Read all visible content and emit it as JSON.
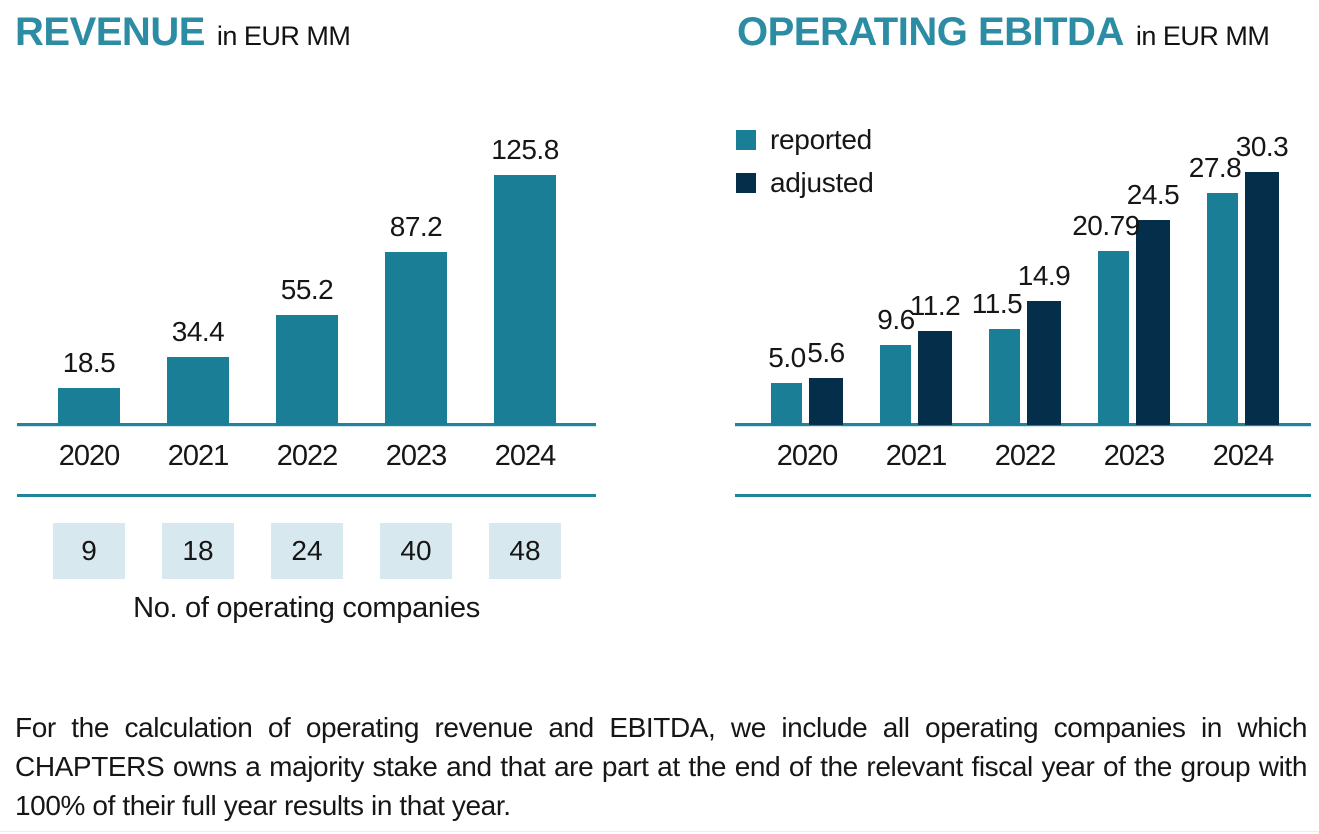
{
  "colors": {
    "title_teal": "#2B8CA3",
    "bar_teal": "#1A7E96",
    "navy": "#042E4A",
    "box_blue": "#D7E8EE",
    "axis_teal": "#1F849C",
    "axis_light": "#CFE4EC",
    "text": "#161616",
    "bottom_rule": "#ECECEC"
  },
  "chart_data": [
    {
      "type": "bar",
      "title": "REVENUE",
      "subtitle": "in EUR MM",
      "categories": [
        "2020",
        "2021",
        "2022",
        "2023",
        "2024"
      ],
      "values": [
        18.5,
        34.4,
        55.2,
        87.2,
        125.8
      ],
      "value_labels": [
        "18.5",
        "34.4",
        "55.2",
        "87.2",
        "125.8"
      ],
      "bar_color": "#1A7E96",
      "ylim": [
        0,
        130
      ],
      "grid": false,
      "legend_position": "none",
      "annotation_row": {
        "label": "No. of operating companies",
        "values": [
          "9",
          "18",
          "24",
          "40",
          "48"
        ],
        "box_color": "#D7E8EE"
      }
    },
    {
      "type": "bar",
      "title": "OPERATING EBITDA",
      "subtitle": "in EUR MM",
      "categories": [
        "2020",
        "2021",
        "2022",
        "2023",
        "2024"
      ],
      "series": [
        {
          "name": "reported",
          "color": "#1A7E96",
          "values": [
            5.0,
            9.6,
            11.5,
            20.79,
            27.8
          ],
          "labels": [
            "5.0",
            "9.6",
            "11.5",
            "20.79",
            "27.8"
          ]
        },
        {
          "name": "adjusted",
          "color": "#042E4A",
          "values": [
            5.6,
            11.2,
            14.9,
            24.5,
            30.3
          ],
          "labels": [
            "5.6",
            "11.2",
            "14.9",
            "24.5",
            "30.3"
          ]
        }
      ],
      "ylim": [
        0,
        32
      ],
      "grid": false,
      "legend_position": "top-left"
    }
  ],
  "footnote": {
    "lines": [
      "For the calculation of operating revenue and EBITDA, we include all operating companies in which",
      "CHAPTERS owns a majority stake and that are part at the end of the relevant fiscal year of the group with",
      "100% of their full year results in that year."
    ]
  }
}
